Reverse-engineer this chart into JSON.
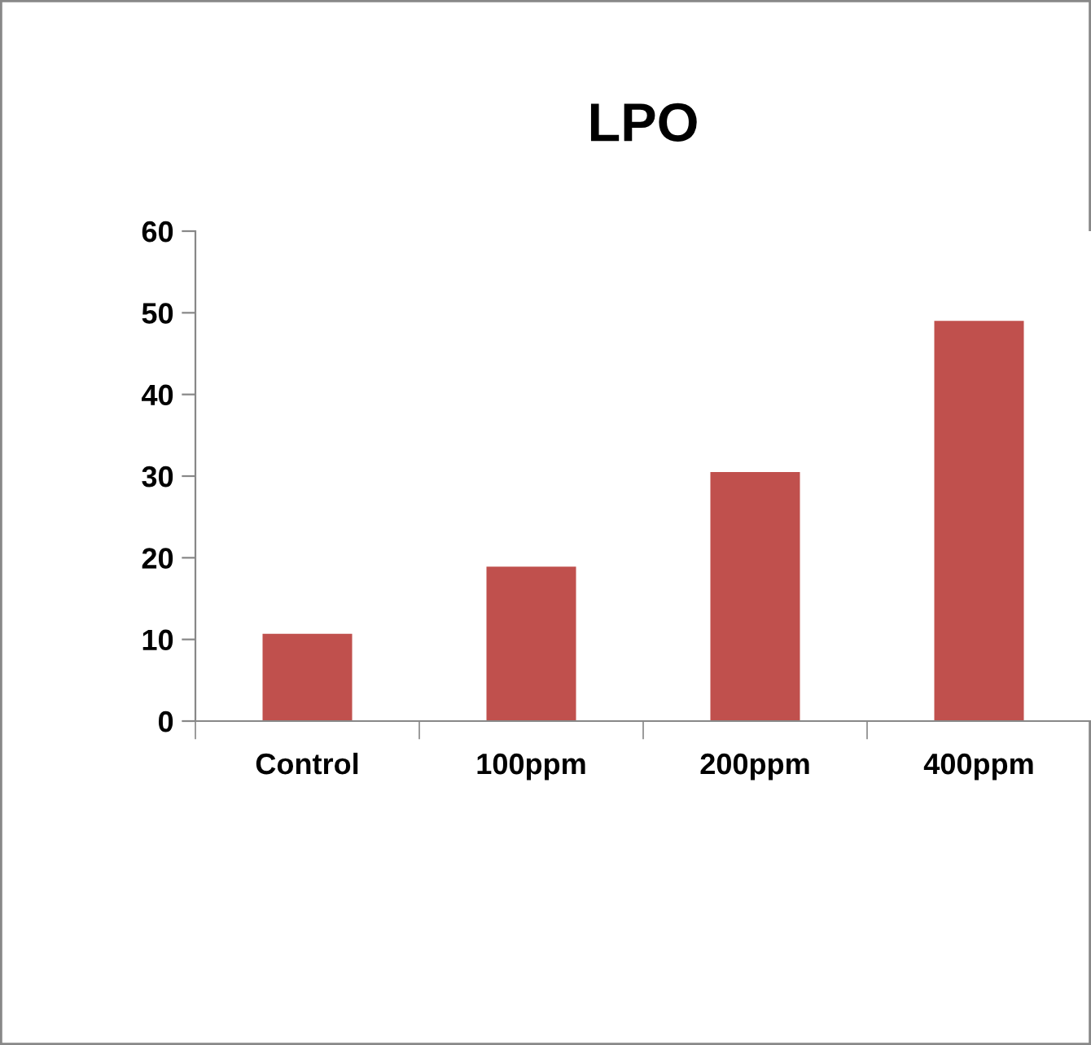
{
  "chart_data": {
    "type": "bar",
    "title": "LPO",
    "categories": [
      "Control",
      "100ppm",
      "200ppm",
      "400ppm"
    ],
    "values": [
      10.7,
      18.9,
      30.5,
      49.0
    ],
    "color": "#c0504d",
    "ylim": [
      0,
      60
    ],
    "yticks": [
      0,
      10,
      20,
      30,
      40,
      50,
      60
    ],
    "grid": false,
    "legend": false
  }
}
